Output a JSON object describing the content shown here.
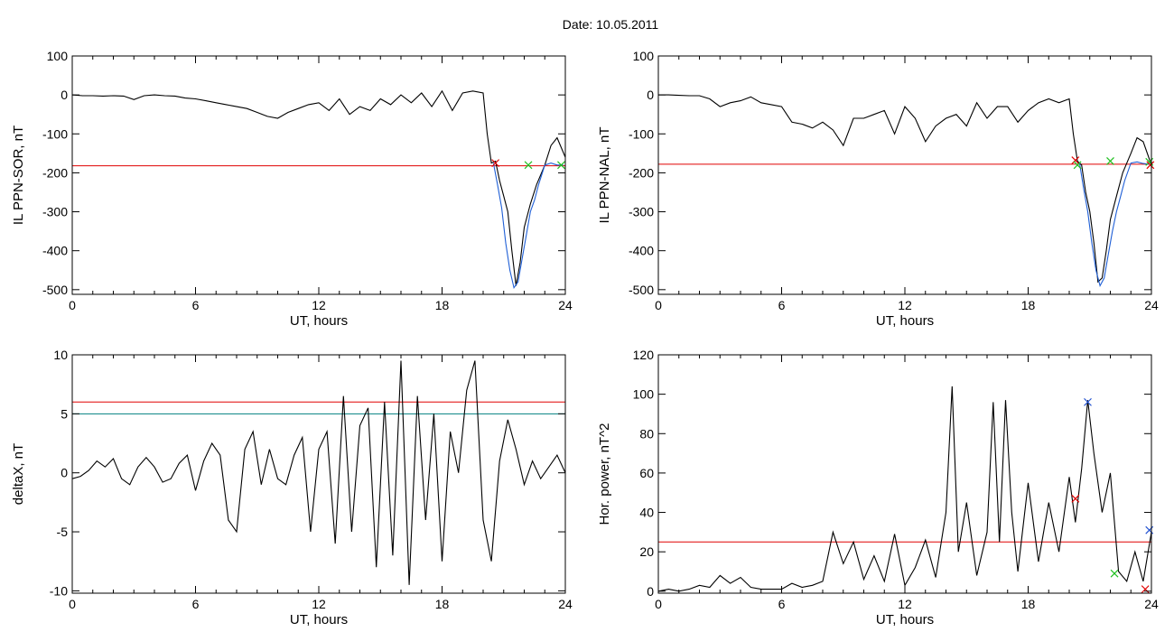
{
  "title": "Date:  10.05.2011",
  "chart_data": [
    {
      "type": "line",
      "panel": "top-left",
      "xlabel": "UT, hours",
      "ylabel": "IL PPN-SOR, nT",
      "xlim": [
        0,
        24
      ],
      "ylim": [
        -512,
        100
      ],
      "xticks": [
        0,
        6,
        12,
        18,
        24
      ],
      "yticks": [
        100,
        0,
        -100,
        -200,
        -300,
        -400,
        -500
      ],
      "series": [
        {
          "color": "#000000",
          "x": [
            0,
            0.5,
            1,
            1.5,
            2,
            2.5,
            3,
            3.5,
            4,
            4.5,
            5,
            5.5,
            6,
            6.5,
            7,
            7.5,
            8,
            8.5,
            9,
            9.5,
            10,
            10.5,
            11,
            11.5,
            12,
            12.5,
            13,
            13.5,
            14,
            14.5,
            15,
            15.5,
            16,
            16.5,
            17,
            17.5,
            18,
            18.5,
            19,
            19.5,
            20,
            20.2,
            20.4,
            20.6,
            20.8,
            21,
            21.2,
            21.4,
            21.6,
            21.8,
            22,
            22.3,
            22.6,
            23,
            23.3,
            23.6,
            24
          ],
          "y": [
            0,
            -2,
            -2,
            -3,
            -2,
            -3,
            -12,
            -2,
            0,
            -2,
            -3,
            -8,
            -10,
            -15,
            -20,
            -25,
            -30,
            -35,
            -45,
            -55,
            -60,
            -45,
            -35,
            -25,
            -20,
            -40,
            -10,
            -50,
            -30,
            -40,
            -10,
            -25,
            0,
            -20,
            5,
            -30,
            10,
            -40,
            5,
            10,
            5,
            -100,
            -175,
            -170,
            -220,
            -260,
            -300,
            -400,
            -490,
            -430,
            -340,
            -280,
            -230,
            -180,
            -130,
            -110,
            -160
          ]
        },
        {
          "color": "#1f5fd6",
          "x": [
            20.5,
            20.7,
            20.9,
            21.1,
            21.3,
            21.5,
            21.7,
            21.9,
            22.1,
            22.3,
            22.5,
            22.7,
            23,
            23.3,
            23.6,
            23.9
          ],
          "y": [
            -175,
            -230,
            -290,
            -380,
            -450,
            -495,
            -480,
            -420,
            -360,
            -300,
            -270,
            -230,
            -180,
            -175,
            -180,
            -180
          ]
        }
      ],
      "hlines": [
        {
          "y": -182,
          "color": "#e00000"
        }
      ],
      "markers": [
        {
          "x": 20.6,
          "y": -175,
          "color": "#e00000"
        },
        {
          "x": 22.2,
          "y": -180,
          "color": "#20c020"
        },
        {
          "x": 23.8,
          "y": -180,
          "color": "#20c020"
        }
      ]
    },
    {
      "type": "line",
      "panel": "top-right",
      "xlabel": "UT, hours",
      "ylabel": "IL PPN-NAL, nT",
      "xlim": [
        0,
        24
      ],
      "ylim": [
        -512,
        100
      ],
      "xticks": [
        0,
        6,
        12,
        18,
        24
      ],
      "yticks": [
        100,
        0,
        -100,
        -200,
        -300,
        -400,
        -500
      ],
      "series": [
        {
          "color": "#000000",
          "x": [
            0,
            0.5,
            1,
            1.5,
            2,
            2.5,
            3,
            3.5,
            4,
            4.5,
            5,
            5.5,
            6,
            6.5,
            7,
            7.5,
            8,
            8.5,
            9,
            9.5,
            10,
            10.5,
            11,
            11.5,
            12,
            12.5,
            13,
            13.5,
            14,
            14.5,
            15,
            15.5,
            16,
            16.5,
            17,
            17.5,
            18,
            18.5,
            19,
            19.5,
            20,
            20.2,
            20.4,
            20.6,
            20.8,
            21,
            21.2,
            21.4,
            21.6,
            21.8,
            22,
            22.3,
            22.6,
            23,
            23.3,
            23.6,
            24
          ],
          "y": [
            0,
            0,
            -1,
            -2,
            -2,
            -10,
            -30,
            -20,
            -15,
            -5,
            -20,
            -25,
            -30,
            -70,
            -75,
            -85,
            -70,
            -90,
            -130,
            -60,
            -60,
            -50,
            -40,
            -100,
            -30,
            -60,
            -120,
            -80,
            -60,
            -50,
            -80,
            -20,
            -60,
            -30,
            -30,
            -70,
            -40,
            -20,
            -10,
            -20,
            -10,
            -100,
            -170,
            -180,
            -250,
            -300,
            -380,
            -480,
            -470,
            -400,
            -320,
            -260,
            -200,
            -150,
            -110,
            -120,
            -180
          ]
        },
        {
          "color": "#1f5fd6",
          "x": [
            20.5,
            20.7,
            20.9,
            21.1,
            21.3,
            21.5,
            21.7,
            21.9,
            22.1,
            22.3,
            22.5,
            22.7,
            23,
            23.3,
            23.6,
            23.9
          ],
          "y": [
            -175,
            -240,
            -300,
            -380,
            -450,
            -490,
            -470,
            -410,
            -350,
            -300,
            -260,
            -220,
            -175,
            -172,
            -176,
            -178
          ]
        }
      ],
      "hlines": [
        {
          "y": -178,
          "color": "#e00000"
        }
      ],
      "markers": [
        {
          "x": 20.3,
          "y": -168,
          "color": "#e00000"
        },
        {
          "x": 20.4,
          "y": -180,
          "color": "#20c020"
        },
        {
          "x": 22.0,
          "y": -170,
          "color": "#20c020"
        },
        {
          "x": 23.9,
          "y": -172,
          "color": "#20c020"
        },
        {
          "x": 23.95,
          "y": -180,
          "color": "#e00000"
        }
      ]
    },
    {
      "type": "line",
      "panel": "bottom-left",
      "xlabel": "UT, hours",
      "ylabel": "deltaX, nT",
      "xlim": [
        0,
        24
      ],
      "ylim": [
        -10.2,
        10
      ],
      "xticks": [
        0,
        6,
        12,
        18,
        24
      ],
      "yticks": [
        10,
        5,
        0,
        -5,
        -10
      ],
      "series": [
        {
          "color": "#000000",
          "x": [
            0,
            0.4,
            0.8,
            1.2,
            1.6,
            2.0,
            2.4,
            2.8,
            3.2,
            3.6,
            4.0,
            4.4,
            4.8,
            5.2,
            5.6,
            6.0,
            6.4,
            6.8,
            7.2,
            7.6,
            8.0,
            8.4,
            8.8,
            9.2,
            9.6,
            10.0,
            10.4,
            10.8,
            11.2,
            11.6,
            12.0,
            12.4,
            12.8,
            13.2,
            13.6,
            14.0,
            14.4,
            14.8,
            15.2,
            15.6,
            16.0,
            16.4,
            16.8,
            17.2,
            17.6,
            18.0,
            18.4,
            18.8,
            19.2,
            19.6,
            20.0,
            20.4,
            20.8,
            21.2,
            21.6,
            22.0,
            22.4,
            22.8,
            23.2,
            23.6,
            24.0
          ],
          "y": [
            -0.5,
            -0.3,
            0.2,
            1.0,
            0.5,
            1.2,
            -0.5,
            -1.0,
            0.5,
            1.3,
            0.5,
            -0.8,
            -0.5,
            0.8,
            1.5,
            -1.5,
            1.0,
            2.5,
            1.5,
            -4.0,
            -5.0,
            2.0,
            3.5,
            -1.0,
            2.0,
            -0.5,
            -1.0,
            1.5,
            3.0,
            -5.0,
            2.0,
            3.5,
            -6.0,
            6.5,
            -5.0,
            4.0,
            5.5,
            -8.0,
            6.0,
            -7.0,
            9.5,
            -9.5,
            6.5,
            -4.0,
            5.0,
            -7.5,
            3.5,
            0.0,
            7.0,
            9.5,
            -4.0,
            -7.5,
            1.0,
            4.5,
            2.0,
            -1.0,
            1.0,
            -0.5,
            0.5,
            1.5,
            0.0
          ]
        }
      ],
      "hlines": [
        {
          "y": 6.0,
          "color": "#e00000"
        },
        {
          "y": 5.0,
          "color": "#008080"
        }
      ],
      "markers": []
    },
    {
      "type": "line",
      "panel": "bottom-right",
      "xlabel": "UT, hours",
      "ylabel": "Hor. power, nT^2",
      "xlim": [
        0,
        24
      ],
      "ylim": [
        -1,
        120
      ],
      "xticks": [
        0,
        6,
        12,
        18,
        24
      ],
      "yticks": [
        120,
        100,
        80,
        60,
        40,
        20,
        0
      ],
      "series": [
        {
          "color": "#000000",
          "x": [
            0,
            0.5,
            1.0,
            1.5,
            2.0,
            2.5,
            3.0,
            3.5,
            4.0,
            4.5,
            5.0,
            5.5,
            6.0,
            6.5,
            7.0,
            7.5,
            8.0,
            8.5,
            9.0,
            9.5,
            10.0,
            10.5,
            11.0,
            11.5,
            12.0,
            12.5,
            13.0,
            13.5,
            14.0,
            14.3,
            14.6,
            15.0,
            15.5,
            16.0,
            16.3,
            16.6,
            16.9,
            17.2,
            17.5,
            18.0,
            18.5,
            19.0,
            19.5,
            20.0,
            20.3,
            20.6,
            20.9,
            21.2,
            21.6,
            22.0,
            22.4,
            22.8,
            23.2,
            23.6,
            24.0
          ],
          "y": [
            0,
            1,
            0,
            1,
            3,
            2,
            8,
            4,
            7,
            2,
            1,
            1,
            1,
            4,
            2,
            3,
            5,
            30,
            14,
            25,
            6,
            18,
            5,
            29,
            3,
            12,
            26,
            7,
            40,
            104,
            20,
            45,
            8,
            30,
            96,
            25,
            97,
            40,
            10,
            55,
            15,
            45,
            20,
            58,
            35,
            62,
            97,
            70,
            40,
            60,
            10,
            5,
            20,
            5,
            30
          ]
        }
      ],
      "hlines": [
        {
          "y": 25,
          "color": "#e00000"
        }
      ],
      "markers": [
        {
          "x": 20.3,
          "y": 47,
          "color": "#e00000"
        },
        {
          "x": 20.9,
          "y": 96,
          "color": "#2050d0"
        },
        {
          "x": 22.2,
          "y": 9,
          "color": "#20c020"
        },
        {
          "x": 23.7,
          "y": 1,
          "color": "#e00000"
        },
        {
          "x": 23.9,
          "y": 31,
          "color": "#2050d0"
        }
      ]
    }
  ]
}
